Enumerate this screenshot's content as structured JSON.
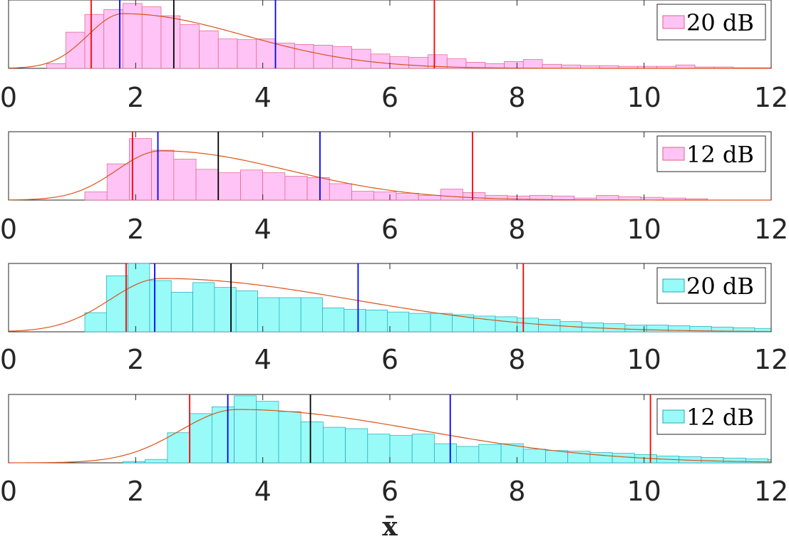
{
  "chart_data": [
    {
      "type": "bar",
      "legend": "20 dB",
      "bar_color": "#ff99ff",
      "xlim": [
        0,
        12
      ],
      "xticks": [
        "0",
        "2",
        "4",
        "6",
        "8",
        "10",
        "12"
      ],
      "bins": {
        "start": 0.6,
        "width": 0.3,
        "values": [
          0.07,
          0.53,
          0.79,
          0.86,
          0.95,
          0.9,
          0.77,
          0.64,
          0.55,
          0.43,
          0.42,
          0.43,
          0.37,
          0.35,
          0.34,
          0.32,
          0.28,
          0.21,
          0.17,
          0.16,
          0.2,
          0.14,
          0.09,
          0.07,
          0.1,
          0.13,
          0.06,
          0.05,
          0.04,
          0.04,
          0.03,
          0.03,
          0.03,
          0.05,
          0.02,
          0.02,
          0.01,
          0.01,
          0.01,
          0.01,
          0.01
        ]
      },
      "fit": {
        "mode": 1.8,
        "peak": 0.8,
        "sigma_left": 0.55,
        "sigma_right": 1.9
      },
      "vlines": [
        {
          "x": 1.3,
          "color": "#ff0000"
        },
        {
          "x": 1.75,
          "color": "#0000ff"
        },
        {
          "x": 2.6,
          "color": "#000000"
        },
        {
          "x": 4.2,
          "color": "#0000ff"
        },
        {
          "x": 6.7,
          "color": "#ff0000"
        }
      ]
    },
    {
      "type": "bar",
      "legend": "12 dB",
      "bar_color": "#ff99ff",
      "xlim": [
        0,
        12
      ],
      "xticks": [
        "0",
        "2",
        "4",
        "6",
        "8",
        "10",
        "12"
      ],
      "bins": {
        "start": 1.2,
        "width": 0.35,
        "values": [
          0.12,
          0.53,
          0.9,
          0.73,
          0.6,
          0.45,
          0.4,
          0.44,
          0.4,
          0.35,
          0.33,
          0.24,
          0.13,
          0.12,
          0.1,
          0.07,
          0.16,
          0.11,
          0.07,
          0.06,
          0.07,
          0.06,
          0.03,
          0.07,
          0.05,
          0.04,
          0.03,
          0.02
        ]
      },
      "fit": {
        "mode": 2.4,
        "peak": 0.72,
        "sigma_left": 0.7,
        "sigma_right": 2.0
      },
      "vlines": [
        {
          "x": 1.95,
          "color": "#ff0000"
        },
        {
          "x": 2.35,
          "color": "#0000ff"
        },
        {
          "x": 3.3,
          "color": "#000000"
        },
        {
          "x": 4.9,
          "color": "#0000ff"
        },
        {
          "x": 7.3,
          "color": "#ff0000"
        }
      ]
    },
    {
      "type": "bar",
      "legend": "20 dB",
      "bar_color": "#00ffff",
      "xlim": [
        0,
        12
      ],
      "xticks": [
        "0",
        "2",
        "4",
        "6",
        "8",
        "10",
        "12"
      ],
      "bins": {
        "start": 1.2,
        "width": 0.34,
        "values": [
          0.28,
          0.82,
          1.0,
          0.75,
          0.58,
          0.72,
          0.65,
          0.6,
          0.5,
          0.5,
          0.5,
          0.35,
          0.33,
          0.32,
          0.29,
          0.27,
          0.27,
          0.25,
          0.23,
          0.22,
          0.2,
          0.18,
          0.15,
          0.13,
          0.12,
          0.1,
          0.1,
          0.09,
          0.08,
          0.07,
          0.06,
          0.05
        ]
      },
      "fit": {
        "mode": 2.4,
        "peak": 0.78,
        "sigma_left": 0.8,
        "sigma_right": 3.0
      },
      "vlines": [
        {
          "x": 1.85,
          "color": "#ff0000"
        },
        {
          "x": 2.3,
          "color": "#0000ff"
        },
        {
          "x": 3.5,
          "color": "#000000"
        },
        {
          "x": 5.5,
          "color": "#0000ff"
        },
        {
          "x": 8.1,
          "color": "#ff0000"
        }
      ]
    },
    {
      "type": "bar",
      "legend": "12 dB",
      "bar_color": "#00ffff",
      "xlim": [
        0,
        12
      ],
      "xticks": [
        "0",
        "2",
        "4",
        "6",
        "8",
        "10",
        "12"
      ],
      "bins": {
        "start": 1.8,
        "width": 0.35,
        "values": [
          0.02,
          0.05,
          0.44,
          0.72,
          0.82,
          0.98,
          0.9,
          0.75,
          0.6,
          0.52,
          0.5,
          0.42,
          0.4,
          0.42,
          0.28,
          0.24,
          0.27,
          0.28,
          0.2,
          0.18,
          0.17,
          0.15,
          0.14,
          0.12,
          0.1,
          0.09,
          0.08,
          0.07,
          0.06,
          0.05,
          0.05
        ]
      },
      "fit": {
        "mode": 3.6,
        "peak": 0.78,
        "sigma_left": 0.9,
        "sigma_right": 2.9
      },
      "vlines": [
        {
          "x": 2.85,
          "color": "#ff0000"
        },
        {
          "x": 3.45,
          "color": "#0000ff"
        },
        {
          "x": 4.75,
          "color": "#000000"
        },
        {
          "x": 6.95,
          "color": "#0000ff"
        },
        {
          "x": 10.1,
          "color": "#ff0000"
        }
      ]
    }
  ],
  "fit_color": "#d95319",
  "xlabel": "x̄"
}
